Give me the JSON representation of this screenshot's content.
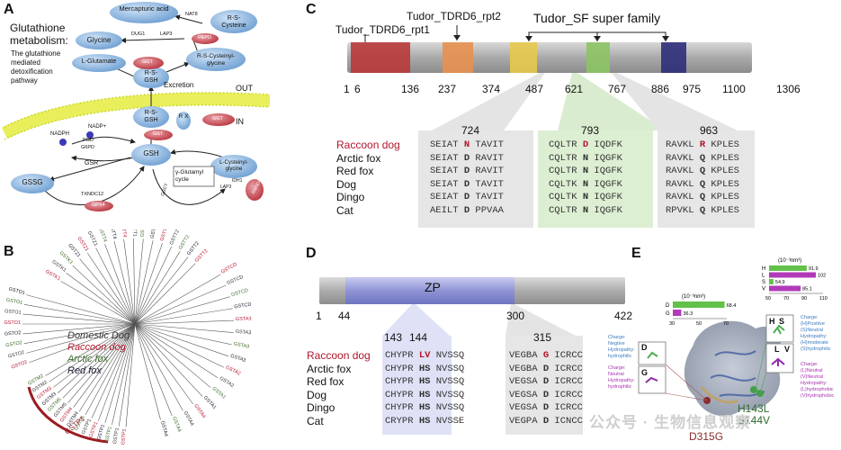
{
  "panels": {
    "A": {
      "letter": "A",
      "title": "Glutathione metabolism:",
      "subtitle": "The glutathione mediated detoxification pathway",
      "out_label": "OUT",
      "in_label": "IN",
      "excretion": "Excretion",
      "nodes": {
        "mercapturic": "Mercapturic acid",
        "rs_cys": "R-S-Cysteine",
        "glycine": "Glycine",
        "lglu": "L-Glutamate",
        "rs_cysgly": "R-S-Cysteinyl-glycine",
        "rsgsh_top": "R-S-GSH",
        "rsgsh_mid": "R-S-GSH",
        "rx": "R X",
        "gsh": "GSH",
        "gssg": "GSSG",
        "lcysgly": "L-Cysteinyl-glycine",
        "gamma": "γ-Glutamyl cycle",
        "nadph": "NADPH",
        "nadp": "NADP+"
      },
      "enzymes": {
        "nat8": "NAT8",
        "dug1": "DUG1",
        "lap3": "LAP3",
        "ggt_top": "GGT",
        "ggt_right": "GGT",
        "pepd": "PEPD",
        "gst": "GST",
        "pgd": "PGD",
        "g6pd": "G6PD",
        "gsr": "GSR",
        "txndc12": "TXNDC12",
        "gpx4": "GPX4",
        "ggct": "GGCT",
        "gsr_small": "GSR",
        "lap3_b": "LAP3",
        "ids": "IDH1",
        "fo": "ANPEP"
      }
    },
    "B": {
      "letter": "B",
      "legend": [
        {
          "label": "Domestic Dog",
          "color": "#333333"
        },
        {
          "label": "Raccoon dog",
          "color": "#b3152b"
        },
        {
          "label": "Arctic fox",
          "color": "#3d6b2a"
        },
        {
          "label": "Red fox",
          "color": "#1a1a2e"
        }
      ],
      "clade_label": "GSTP1",
      "tip_labels": {
        "top": [
          "GSTK1",
          "GSTK1",
          "GSTK1",
          "GSTZ1",
          "GSTZ1",
          "GSTZ1",
          "GSTT4",
          "GSTT4",
          "GSTT4",
          "GSTT1",
          "GSTT1",
          "GSTT1",
          "GSTT2B",
          "GSTT2",
          "GSTT2",
          "GSTT2",
          "GSTT2"
        ],
        "left": [
          "GSTO2",
          "GSTO2",
          "GSTO2",
          "GSTO2",
          "GSTO1",
          "GSTO1",
          "GSTO1",
          "GSTO1"
        ],
        "right": [
          "GSTCD",
          "GSTCD",
          "GSTCD",
          "GSTCD",
          "GSTA3",
          "GSTA3",
          "GSTA3",
          "GSTA3",
          "GSTA2",
          "GSTA2",
          "GSTA1",
          "GSTA1",
          "GSTA4",
          "GSTA4",
          "GSTA4",
          "GSTA4"
        ],
        "bottom": [
          "GSTP1",
          "GSTP1",
          "GSTP1",
          "GSTP1",
          "GSTP1",
          "GSTP1",
          "GSTP1",
          "GSTM4",
          "GSTM4",
          "GSTM5",
          "GSTM5",
          "GSTM3",
          "GSTM3",
          "GSTM2",
          "GSTM2"
        ]
      }
    },
    "C": {
      "letter": "C",
      "domain_labels": [
        "Tudor_TDRD6_rpt1",
        "Tudor_TDRD6_rpt2",
        "Tudor_SF super family"
      ],
      "positions": [
        "1",
        "6",
        "136",
        "237",
        "374",
        "487",
        "621",
        "767",
        "886",
        "975",
        "1100",
        "1306"
      ],
      "blocks": [
        {
          "pos": "724",
          "rows": [
            {
              "pre": "SEIAT ",
              "res": "N",
              "post": " TAVIT",
              "highlight": true
            },
            {
              "pre": "SEIAT ",
              "res": "D",
              "post": " RAVIT",
              "highlight": false
            },
            {
              "pre": "SEIAT ",
              "res": "D",
              "post": " RAVIT",
              "highlight": false
            },
            {
              "pre": "SEIAT ",
              "res": "D",
              "post": " TAVIT",
              "highlight": false
            },
            {
              "pre": "SEIAT ",
              "res": "D",
              "post": " TAVIT",
              "highlight": false
            },
            {
              "pre": "AEILT ",
              "res": "D",
              "post": " PPVAA",
              "highlight": false
            }
          ]
        },
        {
          "pos": "793",
          "rows": [
            {
              "pre": "CQLTR ",
              "res": "D",
              "post": " IQDFK",
              "highlight": true
            },
            {
              "pre": "CQLTR ",
              "res": "N",
              "post": " IQGFK",
              "highlight": false
            },
            {
              "pre": "CQLTR ",
              "res": "N",
              "post": " IQGFK",
              "highlight": false
            },
            {
              "pre": "CQLTK ",
              "res": "N",
              "post": " IQGFK",
              "highlight": false
            },
            {
              "pre": "CQLTK ",
              "res": "N",
              "post": " IQGFK",
              "highlight": false
            },
            {
              "pre": "CQLTR ",
              "res": "N",
              "post": " IQGFK",
              "highlight": false
            }
          ]
        },
        {
          "pos": "963",
          "rows": [
            {
              "pre": "RAVKL ",
              "res": "R",
              "post": " KPLES",
              "highlight": true
            },
            {
              "pre": "RAVKL ",
              "res": "Q",
              "post": " KPLES",
              "highlight": false
            },
            {
              "pre": "RAVKL ",
              "res": "Q",
              "post": " KPLES",
              "highlight": false
            },
            {
              "pre": "RAVKL ",
              "res": "Q",
              "post": " KPLES",
              "highlight": false
            },
            {
              "pre": "RAVKL ",
              "res": "Q",
              "post": " KPLES",
              "highlight": false
            },
            {
              "pre": "RPVKL ",
              "res": "Q",
              "post": " KPLES",
              "highlight": false
            }
          ]
        }
      ],
      "species": [
        "Raccoon dog",
        "Arctic fox",
        "Red fox",
        "Dog",
        "Dingo",
        "Cat"
      ]
    },
    "D": {
      "letter": "D",
      "domain": "ZP",
      "positions": [
        "1",
        "44",
        "300",
        "422"
      ],
      "species": [
        "Raccoon dog",
        "Arctic fox",
        "Red fox",
        "Dog",
        "Dingo",
        "Cat"
      ],
      "block1_pos": [
        "143",
        "144"
      ],
      "block2_pos": "315",
      "block1": [
        {
          "pre": "CHYPR ",
          "res": "LV",
          "post": " NVSSQ",
          "highlight": true
        },
        {
          "pre": "CHYPR ",
          "res": "HS",
          "post": " NVSSQ",
          "highlight": false
        },
        {
          "pre": "CHYPR ",
          "res": "HS",
          "post": " NVSSQ",
          "highlight": false
        },
        {
          "pre": "CHYPR ",
          "res": "HS",
          "post": " NVSSQ",
          "highlight": false
        },
        {
          "pre": "CHYPR ",
          "res": "HS",
          "post": " NVSSQ",
          "highlight": false
        },
        {
          "pre": "CRYPR ",
          "res": "HS",
          "post": " NVSSE",
          "highlight": false
        }
      ],
      "block2": [
        {
          "pre": "VEGBA ",
          "res": "G",
          "post": " ICRCC",
          "highlight": true
        },
        {
          "pre": "VEGBA ",
          "res": "D",
          "post": " ICRCC",
          "highlight": false
        },
        {
          "pre": "VEGSA ",
          "res": "D",
          "post": " ICRCC",
          "highlight": false
        },
        {
          "pre": "VEGSA ",
          "res": "D",
          "post": " ICRCC",
          "highlight": false
        },
        {
          "pre": "VEGSA ",
          "res": "D",
          "post": " ICRCC",
          "highlight": false
        },
        {
          "pre": "VEGPA ",
          "res": "D",
          "post": " ICNCC",
          "highlight": false
        }
      ]
    },
    "E": {
      "letter": "E",
      "chart_data": [
        {
          "type": "bar",
          "unit": "(10⁻³nm³)",
          "categories": [
            "D",
            "G"
          ],
          "values": [
            68.4,
            36.3
          ],
          "value_labels": [
            "68.4",
            "36.3"
          ],
          "colors": [
            "#62c14a",
            "#b23ab8"
          ],
          "xticks": [
            "30",
            "50",
            "70"
          ],
          "xlim": [
            30,
            70
          ]
        },
        {
          "type": "bar",
          "unit": "(10⁻³nm³)",
          "categories": [
            "H",
            "L",
            "S",
            "V"
          ],
          "values": [
            91.9,
            102,
            54.9,
            85.1
          ],
          "value_labels": [
            "91.9",
            "102",
            "54.9",
            "85.1"
          ],
          "colors": [
            "#62c14a",
            "#b23ab8",
            "#62c14a",
            "#b23ab8"
          ],
          "xticks": [
            "50",
            "70",
            "90",
            "110"
          ],
          "xlim": [
            50,
            110
          ]
        }
      ],
      "notes_left_top": [
        "Charge:",
        "Negtive",
        "Hydropathy:",
        "hydrophilic"
      ],
      "notes_left_bottom": [
        "Charge:",
        "Neutral",
        "Hydropathy:",
        "hydrophilic"
      ],
      "notes_right_top": [
        "Charge:",
        "(H)Positive",
        "(S)Neutral",
        "Hydropathy:",
        "(H)moderate",
        "(S)hydrophilic"
      ],
      "notes_right_bottom": [
        "Charge:",
        "(L)Neutral",
        "(V)Neutral",
        "Hydropathy:",
        "(L)hydrophobic",
        "(V)hydrophobic"
      ],
      "residue_labels": {
        "d": "D",
        "g": "G",
        "h": "H",
        "s": "S",
        "l": "L",
        "v": "V"
      },
      "mut1": "D315G",
      "mut2": "H143L",
      "mut3": "S144V"
    }
  },
  "watermark": "公众号 · 生物信息观察"
}
